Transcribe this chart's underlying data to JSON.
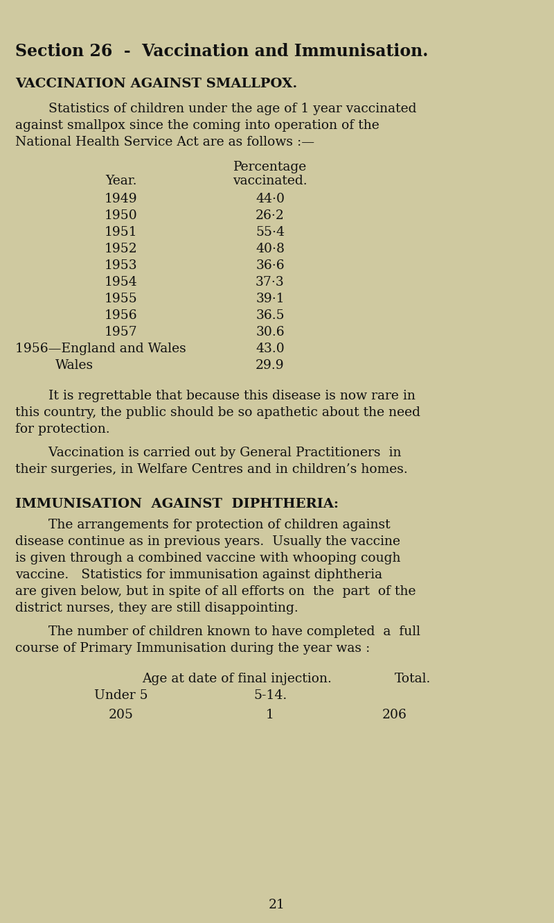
{
  "bg_color": "#cfc9a0",
  "text_color": "#111111",
  "page_number": "21",
  "title": "Section 26  -  Vaccination and Immunisation.",
  "section1_heading": "VACCINATION AGAINST SMALLPOX.",
  "section1_para1_indent": "        Statistics of children under the age of 1 year vaccinated",
  "section1_para1_line2": "against smallpox since the coming into operation of the",
  "section1_para1_line3": "National Health Service Act are as follows :—",
  "table1_col1_header": "Year.",
  "table1_col2_header1": "Percentage",
  "table1_col2_header2": "vaccinated.",
  "table1_rows": [
    [
      "1949",
      "44·0"
    ],
    [
      "1950",
      "26·2"
    ],
    [
      "1951",
      "55·4"
    ],
    [
      "1952",
      "40·8"
    ],
    [
      "1953",
      "36·6"
    ],
    [
      "1954",
      "37·3"
    ],
    [
      "1955",
      "39·1"
    ],
    [
      "1956",
      "36.5"
    ],
    [
      "1957",
      "30.6"
    ],
    [
      "1956—England and Wales",
      "43.0"
    ],
    [
      "Wales",
      "29.9"
    ]
  ],
  "section1_para2_indent": "        It is regrettable that because this disease is now rare in",
  "section1_para2_line2": "this country, the public should be so apathetic about the need",
  "section1_para2_line3": "for protection.",
  "section1_para3_indent": "        Vaccination is carried out by General Practitioners  in",
  "section1_para3_line2": "their surgeries, in Welfare Centres and in children’s homes.",
  "section2_heading": "IMMUNISATION  AGAINST  DIPHTHERIA:",
  "section2_para1_indent": "        The arrangements for protection of children against",
  "section2_para1_line2": "disease continue as in previous years.  Usually the vaccine",
  "section2_para1_line3": "is given through a combined vaccine with whooping cough",
  "section2_para1_line4": "vaccine.   Statistics for immunisation against diphtheria",
  "section2_para1_line5": "are given below, but in spite of all efforts on  the  part  of the",
  "section2_para1_line6": "district nurses, they are still disappointing.",
  "section2_para2_indent": "        The number of children known to have completed  a  full",
  "section2_para2_line2": "course of Primary Immunisation during the year was :",
  "table2_header1": "Age at date of final injection.",
  "table2_header2": "Total.",
  "table2_subheader1": "Under 5",
  "table2_subheader2": "5-14.",
  "table2_val1": "205",
  "table2_val2": "1",
  "table2_val3": "206"
}
